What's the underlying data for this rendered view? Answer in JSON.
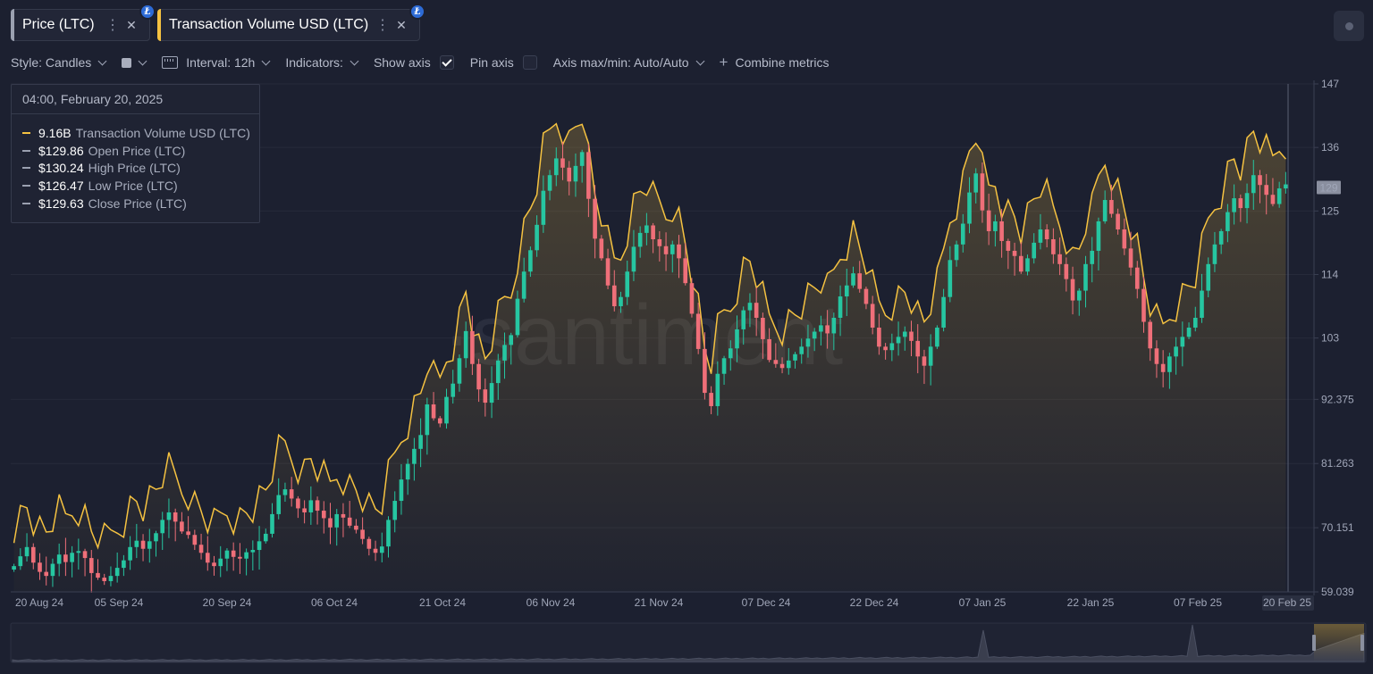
{
  "tabs": [
    {
      "label": "Price (LTC)",
      "stripe": "#9aa0b0",
      "badge": "Ł"
    },
    {
      "label": "Transaction Volume USD (LTC)",
      "stripe": "#f5c241",
      "badge": "Ł"
    }
  ],
  "toolbar": {
    "style_label": "Style: Candles",
    "interval_label": "Interval: 12h",
    "indicators_label": "Indicators:",
    "show_axis_label": "Show axis",
    "show_axis_checked": true,
    "pin_axis_label": "Pin axis",
    "pin_axis_checked": false,
    "axis_label": "Axis max/min: Auto/Auto",
    "combine_label": "Combine metrics"
  },
  "tooltip": {
    "date": "04:00, February 20, 2025",
    "rows": [
      {
        "value": "9.16B",
        "name": "Transaction Volume USD (LTC)",
        "color": "#f5c241"
      },
      {
        "value": "$129.86",
        "name": "Open Price (LTC)",
        "color": "#9aa0b0"
      },
      {
        "value": "$130.24",
        "name": "High Price (LTC)",
        "color": "#9aa0b0"
      },
      {
        "value": "$126.47",
        "name": "Low Price (LTC)",
        "color": "#9aa0b0"
      },
      {
        "value": "$129.63",
        "name": "Close Price (LTC)",
        "color": "#9aa0b0"
      }
    ]
  },
  "watermark": "·santiment",
  "colors": {
    "up": "#26c6a1",
    "down": "#ef6f79",
    "volume": "#f5c241",
    "background": "#1c2030"
  },
  "chart_data": {
    "type": "candlestick+line",
    "x_ticks": [
      "20 Aug 24",
      "05 Sep 24",
      "20 Sep 24",
      "06 Oct 24",
      "21 Oct 24",
      "06 Nov 24",
      "21 Nov 24",
      "07 Dec 24",
      "22 Dec 24",
      "07 Jan 25",
      "22 Jan 25",
      "07 Feb 25",
      "20 Feb 25"
    ],
    "y_ticks": [
      "147",
      "136",
      "125",
      "114",
      "103",
      "92.375",
      "81.263",
      "70.151",
      "59.039"
    ],
    "ylim": [
      59.039,
      147
    ],
    "current_price_label": "129",
    "price_close": [
      63.5,
      65.2,
      66.8,
      64.1,
      62.5,
      61.8,
      63.9,
      65.5,
      64.2,
      65.8,
      66.1,
      64.9,
      62.3,
      61.5,
      60.9,
      61.8,
      63.2,
      64.5,
      66.8,
      67.9,
      66.5,
      67.8,
      69.2,
      71.5,
      72.8,
      71.2,
      69.5,
      68.9,
      67.2,
      65.8,
      64.1,
      63.5,
      64.8,
      66.2,
      65.1,
      64.8,
      65.9,
      66.3,
      67.8,
      69.1,
      72.5,
      75.8,
      76.8,
      75.2,
      73.5,
      72.8,
      74.9,
      73.1,
      71.8,
      70.2,
      72.5,
      71.9,
      70.5,
      69.8,
      68.2,
      66.5,
      65.8,
      66.9,
      71.5,
      74.8,
      78.5,
      81.2,
      83.8,
      86.2,
      91.5,
      89.1,
      88.2,
      92.8,
      95.1,
      99.5,
      104.2,
      98.5,
      94.1,
      91.8,
      95.2,
      99.1,
      101.8,
      103.5,
      109.8,
      114.5,
      118.2,
      122.6,
      128.5,
      131.2,
      134.1,
      132.5,
      130.1,
      132.8,
      135.2,
      127.1,
      120.2,
      116.8,
      112.1,
      108.5,
      110.1,
      114.5,
      118.8,
      121.2,
      122.5,
      120.1,
      118.9,
      117.5,
      119.2,
      116.8,
      112.5,
      107.2,
      101.1,
      93.5,
      91.2,
      96.8,
      99.5,
      101.2,
      104.5,
      107.8,
      109.1,
      106.5,
      102.8,
      99.2,
      98.5,
      97.8,
      99.1,
      100.2,
      101.5,
      102.9,
      104.1,
      105.2,
      103.8,
      106.5,
      110.2,
      112.1,
      114.2,
      111.5,
      108.9,
      104.8,
      101.5,
      100.9,
      102.1,
      103.2,
      104.1,
      102.5,
      99.8,
      98.2,
      101.5,
      104.8,
      110.1,
      116.5,
      119.2,
      122.8,
      128.2,
      131.5,
      125.1,
      121.5,
      123.2,
      119.8,
      118.1,
      117.2,
      114.5,
      116.8,
      119.5,
      121.8,
      120.1,
      117.5,
      115.8,
      113.2,
      109.5,
      111.2,
      115.8,
      118.1,
      123.2,
      126.9,
      124.5,
      121.8,
      118.5,
      115.2,
      111.5,
      105.8,
      101.2,
      98.5,
      97.1,
      99.8,
      101.5,
      103.2,
      104.8,
      106.5,
      111.2,
      115.8,
      119.2,
      121.5,
      124.8,
      127.2,
      125.5,
      128.1,
      131.2,
      129.5,
      127.8,
      126.2,
      128.9,
      129.6
    ]
  }
}
